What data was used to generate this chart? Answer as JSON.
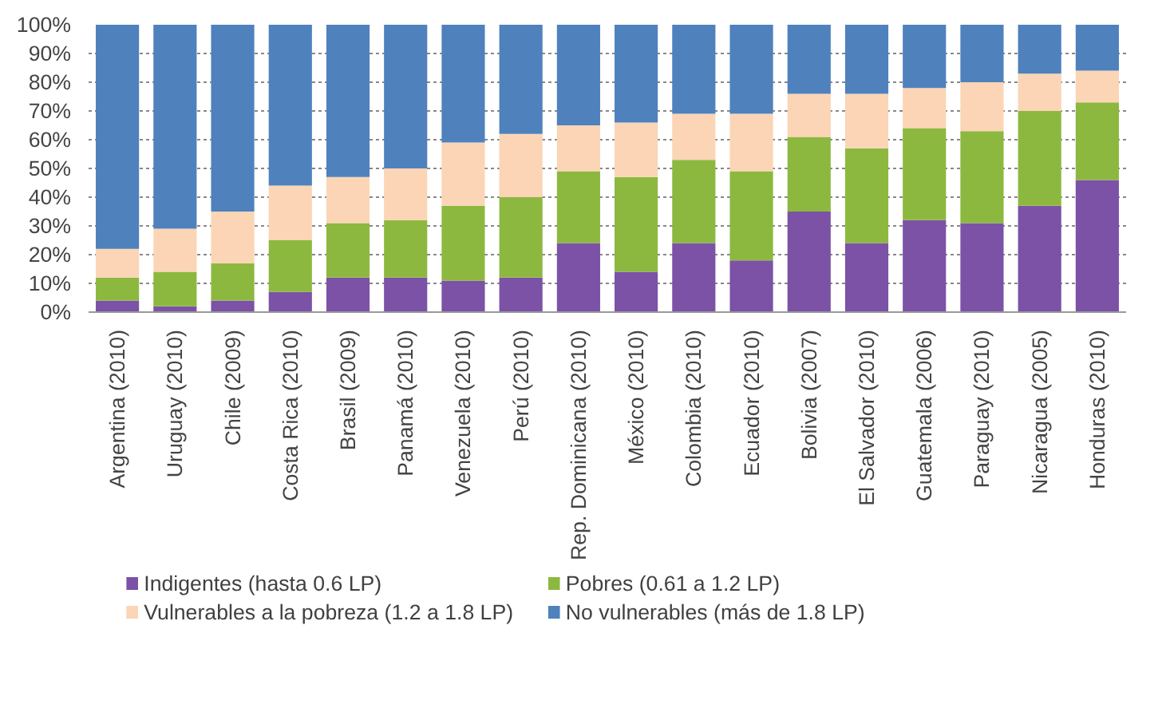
{
  "chart_data": {
    "type": "bar",
    "stacked": true,
    "categories": [
      "Argentina (2010)",
      "Uruguay (2010)",
      "Chile (2009)",
      "Costa Rica (2010)",
      "Brasil (2009)",
      "Panamá (2010)",
      "Venezuela (2010)",
      "Perú (2010)",
      "Rep. Dominicana (2010)",
      "México (2010)",
      "Colombia (2010)",
      "Ecuador (2010)",
      "Bolivia (2007)",
      "El Salvador (2010)",
      "Guatemala (2006)",
      "Paraguay (2010)",
      "Nicaragua (2005)",
      "Honduras (2010)"
    ],
    "series": [
      {
        "name": "Indigentes (hasta 0.6 LP)",
        "color": "#7b52a6",
        "values": [
          4,
          2,
          4,
          7,
          12,
          12,
          11,
          12,
          24,
          14,
          24,
          18,
          35,
          24,
          32,
          31,
          37,
          46
        ]
      },
      {
        "name": "Pobres (0.61 a 1.2 LP)",
        "color": "#8db83f",
        "values": [
          8,
          12,
          13,
          18,
          19,
          20,
          26,
          28,
          25,
          33,
          29,
          31,
          26,
          33,
          32,
          32,
          33,
          27
        ]
      },
      {
        "name": "Vulnerables a la pobreza (1.2 a 1.8 LP)",
        "color": "#fbd5b5",
        "values": [
          10,
          15,
          18,
          19,
          16,
          18,
          22,
          22,
          16,
          19,
          16,
          20,
          15,
          19,
          14,
          17,
          13,
          11
        ]
      },
      {
        "name": "No vulnerables (más de 1.8 LP)",
        "color": "#4f81bd",
        "values": [
          78,
          71,
          65,
          56,
          53,
          50,
          41,
          38,
          35,
          34,
          31,
          31,
          24,
          24,
          22,
          20,
          17,
          16
        ]
      }
    ],
    "ylim": [
      0,
      100
    ],
    "yticks": [
      {
        "value": 0,
        "label": "0%"
      },
      {
        "value": 10,
        "label": "10%"
      },
      {
        "value": 20,
        "label": "20%"
      },
      {
        "value": 30,
        "label": "30%"
      },
      {
        "value": 40,
        "label": "40%"
      },
      {
        "value": 50,
        "label": "50%"
      },
      {
        "value": 60,
        "label": "60%"
      },
      {
        "value": 70,
        "label": "70%"
      },
      {
        "value": 80,
        "label": "80%"
      },
      {
        "value": 90,
        "label": "90%"
      },
      {
        "value": 100,
        "label": "100%"
      }
    ],
    "grid": "y",
    "legend": "bottom"
  }
}
